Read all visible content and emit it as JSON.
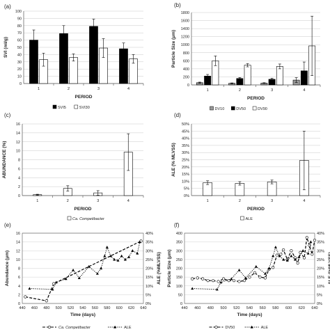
{
  "chart_data": [
    {
      "panel": "(a)",
      "type": "bar",
      "xlabel": "PERIOD",
      "ylabel": "SVI (ml/g)",
      "ylim": [
        0,
        100
      ],
      "yticks": [
        "0",
        "10",
        "20",
        "30",
        "40",
        "50",
        "60",
        "70",
        "80",
        "90",
        "100"
      ],
      "categories": [
        "1",
        "2",
        "3",
        "4"
      ],
      "series": [
        {
          "name": "SVI5",
          "color": "#000000",
          "values": [
            60,
            69,
            79,
            48
          ],
          "errors": [
            14,
            11,
            10,
            8
          ]
        },
        {
          "name": "SVI30",
          "color": "#ffffff",
          "values": [
            33,
            36,
            49,
            34
          ],
          "errors": [
            9,
            5,
            13,
            6
          ]
        }
      ],
      "legend": "bottom"
    },
    {
      "panel": "(b)",
      "type": "bar",
      "xlabel": "PERIOD",
      "ylabel": "Particle Size (μm)",
      "ylim": [
        0,
        1800
      ],
      "yticks": [
        "0",
        "200",
        "400",
        "600",
        "800",
        "1000",
        "1200",
        "1400",
        "1600",
        "1800"
      ],
      "categories": [
        "1",
        "2",
        "3",
        "4"
      ],
      "series": [
        {
          "name": "DV10",
          "color": "#999999",
          "values": [
            55,
            40,
            45,
            120
          ],
          "errors": [
            15,
            10,
            10,
            60
          ]
        },
        {
          "name": "DV50",
          "color": "#000000",
          "values": [
            220,
            160,
            140,
            350
          ],
          "errors": [
            40,
            25,
            25,
            220
          ]
        },
        {
          "name": "DV90",
          "color": "#ffffff",
          "values": [
            600,
            490,
            460,
            970
          ],
          "errors": [
            120,
            40,
            60,
            740
          ]
        }
      ],
      "legend": "bottom"
    },
    {
      "panel": "(c)",
      "type": "bar",
      "xlabel": "PERIOD",
      "ylabel": "ABUNDANCE (%)",
      "ylim": [
        0,
        16
      ],
      "yticks": [
        "0",
        "2",
        "4",
        "6",
        "8",
        "10",
        "12",
        "14",
        "16"
      ],
      "categories": [
        "1",
        "2",
        "3",
        "4"
      ],
      "series": [
        {
          "name": "Ca. Competibacter",
          "color": "#ffffff",
          "values": [
            0.2,
            1.6,
            0.6,
            9.7
          ],
          "errors": [
            0.1,
            0.6,
            0.5,
            4.1
          ]
        }
      ],
      "legend": "bottom"
    },
    {
      "panel": "(d)",
      "type": "bar",
      "xlabel": "PERIOD",
      "ylabel": "ALE (% MLVSS)",
      "ylim": [
        0,
        50
      ],
      "yticks": [
        "0%",
        "5%",
        "10%",
        "15%",
        "20%",
        "25%",
        "30%",
        "35%",
        "40%",
        "45%",
        "50%"
      ],
      "categories": [
        "1",
        "2",
        "3",
        "4"
      ],
      "series": [
        {
          "name": "ALE",
          "color": "#ffffff",
          "values": [
            9,
            8.5,
            9.5,
            24.5
          ],
          "errors": [
            1.3,
            1.2,
            1.3,
            20.5
          ]
        }
      ],
      "legend": "bottom"
    },
    {
      "panel": "(e)",
      "type": "line",
      "xlabel": "Time (days)",
      "ylabel": "Abundance (μm)",
      "y2label": "ALE (%MLVSS)",
      "xlim": [
        440,
        640
      ],
      "xticks": [
        "440",
        "460",
        "480",
        "500",
        "520",
        "540",
        "560",
        "580",
        "600",
        "620",
        "640"
      ],
      "ylim": [
        0,
        16
      ],
      "yticks": [
        "0",
        "2",
        "4",
        "6",
        "8",
        "10",
        "12",
        "14",
        "16"
      ],
      "y2lim": [
        0,
        40
      ],
      "y2ticks": [
        "0%",
        "5%",
        "10%",
        "15%",
        "20%",
        "25%",
        "30%",
        "35%",
        "40%"
      ],
      "series": [
        {
          "name": "Ca. Competibacter",
          "axis": "left",
          "style": "dashed",
          "marker": "circle",
          "x": [
            445,
            480,
            492,
            636
          ],
          "y": [
            1.5,
            0.6,
            4.5,
            14.2
          ]
        },
        {
          "name": "ALE",
          "axis": "right",
          "style": "dotted",
          "marker": "triangle",
          "x": [
            452,
            490,
            496,
            512,
            524,
            534,
            550,
            564,
            570,
            576,
            580,
            586,
            592,
            598,
            604,
            610,
            616,
            622,
            630,
            634
          ],
          "y": [
            8.5,
            8,
            12,
            14,
            19,
            14.5,
            21,
            17,
            20,
            27,
            32,
            27,
            25,
            24.5,
            27,
            25,
            26.5,
            30,
            28.5,
            35
          ]
        }
      ],
      "legend": "bottom"
    },
    {
      "panel": "(f)",
      "type": "line",
      "xlabel": "Time (days)",
      "ylabel": "Particle Size (μm)",
      "y2label": "ALE (%MLVSS)",
      "xlim": [
        440,
        640
      ],
      "xticks": [
        "440",
        "460",
        "480",
        "500",
        "520",
        "540",
        "560",
        "580",
        "600",
        "620",
        "640"
      ],
      "ylim": [
        0,
        400
      ],
      "yticks": [
        "0",
        "50",
        "100",
        "150",
        "200",
        "250",
        "300",
        "350",
        "400"
      ],
      "y2lim": [
        0,
        40
      ],
      "y2ticks": [
        "0%",
        "5%",
        "10%",
        "15%",
        "20%",
        "25%",
        "30%",
        "35%",
        "40%"
      ],
      "series": [
        {
          "name": "DV50",
          "axis": "left",
          "style": "dashed",
          "marker": "circle",
          "x": [
            452,
            460,
            468,
            476,
            484,
            492,
            500,
            508,
            516,
            524,
            532,
            540,
            548,
            556,
            564,
            570,
            576,
            582,
            588,
            592,
            598,
            604,
            610,
            614,
            618,
            624,
            628,
            632,
            636,
            640
          ],
          "y": [
            140,
            145,
            140,
            130,
            130,
            125,
            140,
            130,
            130,
            125,
            130,
            150,
            175,
            150,
            145,
            195,
            205,
            275,
            280,
            305,
            250,
            300,
            260,
            230,
            290,
            260,
            375,
            330,
            280,
            360
          ]
        },
        {
          "name": "ALE",
          "axis": "right",
          "style": "dotted",
          "marker": "triangle",
          "x": [
            452,
            490,
            496,
            512,
            524,
            534,
            550,
            564,
            570,
            576,
            580,
            586,
            592,
            598,
            604,
            610,
            616,
            622,
            630,
            634
          ],
          "y": [
            8.5,
            8,
            12,
            14,
            19,
            14.5,
            21,
            17,
            20,
            27,
            32,
            27,
            25,
            24.5,
            27,
            25,
            26.5,
            30,
            28.5,
            35
          ]
        }
      ],
      "legend": "bottom"
    }
  ]
}
